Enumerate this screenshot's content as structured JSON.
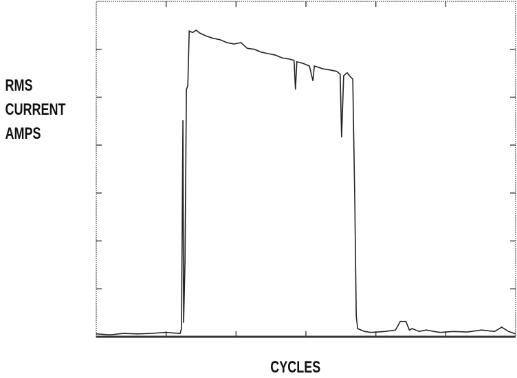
{
  "chart_data": {
    "type": "line",
    "ylabel": [
      "RMS",
      "CURRENT",
      "AMPS"
    ],
    "xlabel": "CYCLES",
    "xlim": [
      0,
      6
    ],
    "xticks": [
      1,
      2,
      3,
      4,
      5
    ],
    "ylim": [
      0,
      7
    ],
    "yticks": [
      1,
      2,
      3,
      4,
      5,
      6
    ],
    "series": [
      {
        "color": "#222",
        "x": [
          0,
          0.2,
          0.39,
          0.59,
          0.79,
          0.98,
          1.2,
          1.22,
          1.24,
          1.25,
          1.27,
          1.29,
          1.31,
          1.33,
          1.38,
          1.43,
          1.48,
          1.57,
          1.67,
          1.77,
          1.87,
          1.97,
          2.07,
          2.16,
          2.26,
          2.36,
          2.46,
          2.56,
          2.66,
          2.75,
          2.83,
          2.85,
          2.87,
          2.95,
          3.05,
          3.1,
          3.12,
          3.25,
          3.34,
          3.44,
          3.49,
          3.51,
          3.54,
          3.59,
          3.64,
          3.67,
          3.7,
          3.72,
          3.74,
          3.84,
          3.93,
          4.13,
          4.28,
          4.35,
          4.43,
          4.48,
          4.52,
          4.62,
          4.72,
          4.92,
          5.11,
          5.31,
          5.51,
          5.7,
          5.8,
          5.9,
          6.0
        ],
        "values": [
          0.06,
          0.04,
          0.07,
          0.06,
          0.07,
          0.09,
          0.07,
          0.17,
          4.52,
          0.29,
          1.58,
          5.16,
          5.24,
          6.38,
          6.35,
          6.4,
          6.34,
          6.28,
          6.23,
          6.2,
          6.14,
          6.11,
          6.14,
          6.02,
          6.0,
          5.94,
          5.91,
          5.88,
          5.82,
          5.8,
          5.77,
          5.16,
          5.74,
          5.71,
          5.65,
          5.34,
          5.65,
          5.59,
          5.57,
          5.54,
          5.48,
          4.16,
          5.45,
          5.51,
          5.42,
          5.38,
          2.73,
          0.43,
          0.17,
          0.11,
          0.09,
          0.11,
          0.14,
          0.32,
          0.32,
          0.14,
          0.17,
          0.11,
          0.14,
          0.09,
          0.11,
          0.1,
          0.14,
          0.11,
          0.2,
          0.11,
          0.06
        ]
      }
    ]
  }
}
